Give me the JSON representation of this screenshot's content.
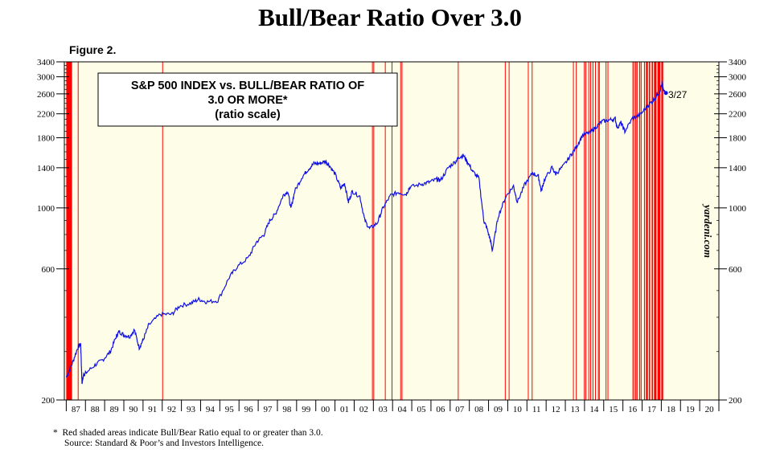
{
  "title": "Bull/Bear Ratio Over 3.0",
  "figure_label": "Figure 2.",
  "footnote": {
    "marker": "*",
    "text": "Red shaded areas indicate Bull/Bear Ratio equal to or greater than 3.0.",
    "source": "Source: Standard & Poor’s and Investors Intelligence."
  },
  "colors": {
    "background": "#fefee8",
    "shade": "#ff0000",
    "line": "#1010e6"
  },
  "chart_data": {
    "type": "line",
    "legend_box": {
      "line1": "S&P 500 INDEX vs. BULL/BEAR RATIO OF",
      "line2": "3.0 OR MORE*",
      "line3": "(ratio scale)"
    },
    "watermark": "yardeni.com",
    "end_label": "3/27",
    "y_scale": "log",
    "ylim": [
      200,
      3400
    ],
    "xlim": [
      1986.9,
      2021.0
    ],
    "y_ticks": [
      200,
      600,
      1000,
      1400,
      1800,
      2200,
      2600,
      3000,
      3400
    ],
    "x_tick_labels": [
      "87",
      "88",
      "89",
      "90",
      "91",
      "92",
      "93",
      "94",
      "95",
      "96",
      "97",
      "98",
      "99",
      "00",
      "01",
      "02",
      "03",
      "04",
      "05",
      "06",
      "07",
      "08",
      "09",
      "10",
      "11",
      "12",
      "13",
      "14",
      "15",
      "16",
      "17",
      "18",
      "19",
      "20"
    ],
    "x_tick_years": [
      1987,
      1988,
      1989,
      1990,
      1991,
      1992,
      1993,
      1994,
      1995,
      1996,
      1997,
      1998,
      1999,
      2000,
      2001,
      2002,
      2003,
      2004,
      2005,
      2006,
      2007,
      2008,
      2009,
      2010,
      2011,
      2012,
      2013,
      2014,
      2015,
      2016,
      2017,
      2018,
      2019,
      2020
    ],
    "series": [
      {
        "x": [
          1987.0,
          1987.3,
          1987.6,
          1987.75,
          1987.82,
          1987.9,
          1988.0,
          1988.5,
          1988.9,
          1989.3,
          1989.6,
          1989.75,
          1990.0,
          1990.3,
          1990.55,
          1990.8,
          1991.0,
          1991.3,
          1991.9,
          1992.5,
          1992.9,
          1993.5,
          1993.9,
          1994.3,
          1994.9,
          1995.5,
          1995.9,
          1996.5,
          1996.9,
          1997.3,
          1997.6,
          1997.9,
          1998.3,
          1998.55,
          1998.7,
          1998.9,
          1999.3,
          1999.6,
          1999.9,
          2000.2,
          2000.5,
          2000.7,
          2001.0,
          2001.3,
          2001.5,
          2001.7,
          2001.9,
          2002.3,
          2002.55,
          2002.8,
          2003.2,
          2003.5,
          2003.9,
          2004.3,
          2004.7,
          2004.9,
          2005.5,
          2005.9,
          2006.3,
          2006.5,
          2006.9,
          2007.3,
          2007.45,
          2007.7,
          2007.9,
          2008.2,
          2008.5,
          2008.75,
          2008.9,
          2009.1,
          2009.2,
          2009.5,
          2009.9,
          2010.3,
          2010.5,
          2010.9,
          2011.3,
          2011.6,
          2011.75,
          2011.9,
          2012.3,
          2012.5,
          2012.9,
          2013.3,
          2013.6,
          2013.9,
          2014.3,
          2014.6,
          2014.9,
          2015.3,
          2015.6,
          2015.7,
          2015.9,
          2016.1,
          2016.5,
          2016.9,
          2017.3,
          2017.6,
          2017.9,
          2018.05,
          2018.1,
          2018.24
        ],
        "y": [
          242,
          270,
          310,
          320,
          230,
          247,
          250,
          268,
          280,
          300,
          340,
          355,
          345,
          340,
          360,
          310,
          330,
          375,
          410,
          410,
          440,
          450,
          465,
          455,
          460,
          560,
          610,
          660,
          750,
          800,
          900,
          950,
          1110,
          1150,
          990,
          1150,
          1300,
          1380,
          1450,
          1450,
          1480,
          1430,
          1330,
          1180,
          1230,
          1050,
          1150,
          1100,
          900,
          840,
          880,
          1000,
          1110,
          1140,
          1120,
          1190,
          1220,
          1240,
          1270,
          1260,
          1400,
          1480,
          1530,
          1550,
          1470,
          1350,
          1280,
          900,
          850,
          760,
          700,
          930,
          1100,
          1200,
          1050,
          1220,
          1340,
          1300,
          1150,
          1260,
          1400,
          1330,
          1420,
          1560,
          1680,
          1840,
          1880,
          1970,
          2060,
          2090,
          2110,
          1960,
          2040,
          1900,
          2120,
          2180,
          2360,
          2470,
          2640,
          2850,
          2680,
          2620
        ]
      }
    ],
    "shaded_periods": [
      [
        1987.0,
        1987.3
      ],
      [
        1987.6,
        1987.62
      ],
      [
        1992.0,
        1992.03
      ],
      [
        2002.93,
        2002.97
      ],
      [
        2003.0,
        2003.04
      ],
      [
        2003.6,
        2003.64
      ],
      [
        2003.95,
        2003.99
      ],
      [
        2004.4,
        2004.44
      ],
      [
        2004.47,
        2004.51
      ],
      [
        2007.4,
        2007.44
      ],
      [
        2009.85,
        2009.89
      ],
      [
        2010.05,
        2010.09
      ],
      [
        2011.05,
        2011.09
      ],
      [
        2011.25,
        2011.29
      ],
      [
        2013.4,
        2013.44
      ],
      [
        2013.55,
        2013.58
      ],
      [
        2013.97,
        2014.0
      ],
      [
        2014.05,
        2014.08
      ],
      [
        2014.2,
        2014.23
      ],
      [
        2014.3,
        2014.33
      ],
      [
        2014.42,
        2014.45
      ],
      [
        2014.55,
        2014.58
      ],
      [
        2014.7,
        2014.73
      ],
      [
        2014.75,
        2014.78
      ],
      [
        2015.1,
        2015.13
      ],
      [
        2015.2,
        2015.24
      ],
      [
        2016.5,
        2016.55
      ],
      [
        2016.58,
        2016.62
      ],
      [
        2016.65,
        2016.7
      ],
      [
        2016.72,
        2016.76
      ],
      [
        2016.85,
        2016.9
      ],
      [
        2016.93,
        2016.96
      ],
      [
        2017.1,
        2017.15
      ],
      [
        2017.2,
        2017.3
      ],
      [
        2017.35,
        2017.42
      ],
      [
        2017.5,
        2017.57
      ],
      [
        2017.62,
        2017.75
      ],
      [
        2017.8,
        2017.95
      ],
      [
        2018.0,
        2018.1
      ]
    ]
  }
}
